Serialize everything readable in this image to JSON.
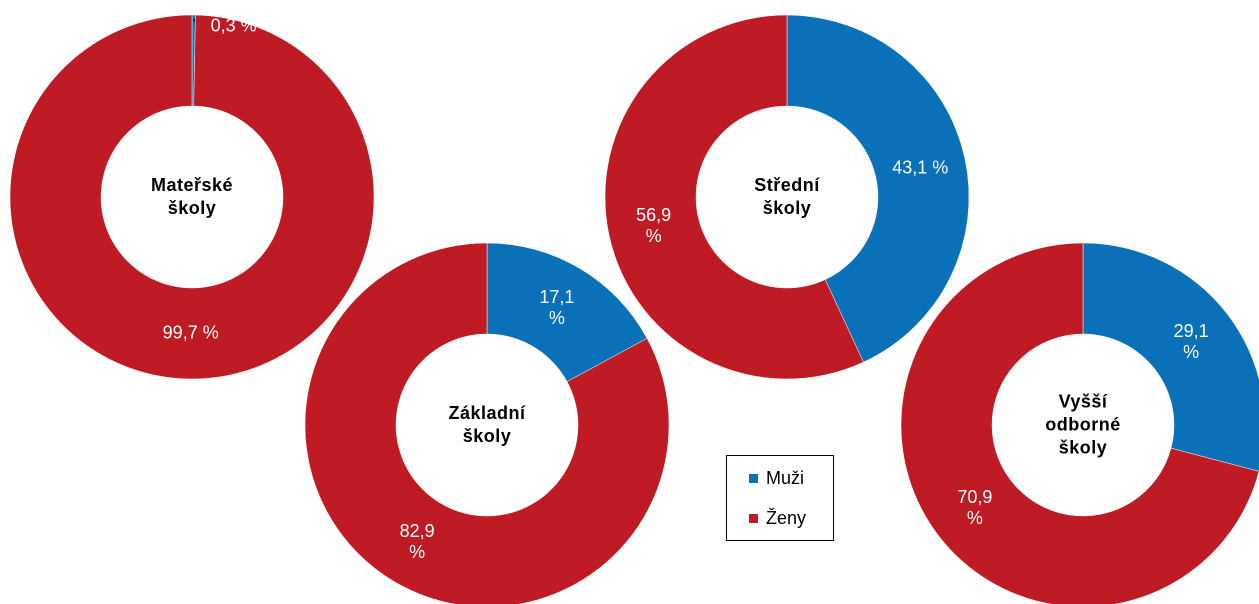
{
  "chart_data": [
    {
      "type": "donut",
      "title": "Mateřské školy",
      "categories": [
        "Muži",
        "Ženy"
      ],
      "colors": [
        "#0a70b8",
        "#be1b24"
      ],
      "values": [
        0.3,
        99.7
      ],
      "value_labels": [
        "0,3 %",
        "99,7 %"
      ]
    },
    {
      "type": "donut",
      "title": "Základní školy",
      "categories": [
        "Muži",
        "Ženy"
      ],
      "colors": [
        "#0a70b8",
        "#be1b24"
      ],
      "values": [
        17.1,
        82.9
      ],
      "value_labels": [
        "17,1 %",
        "82,9 %"
      ]
    },
    {
      "type": "donut",
      "title": "Střední školy",
      "categories": [
        "Muži",
        "Ženy"
      ],
      "colors": [
        "#0a70b8",
        "#be1b24"
      ],
      "values": [
        43.1,
        56.9
      ],
      "value_labels": [
        "43,1 %",
        "56,9 %"
      ]
    },
    {
      "type": "donut",
      "title": "Vyšší odborné školy",
      "categories": [
        "Muži",
        "Ženy"
      ],
      "colors": [
        "#0a70b8",
        "#be1b24"
      ],
      "values": [
        29.1,
        70.9
      ],
      "value_labels": [
        "29,1 %",
        "70,9 %"
      ]
    }
  ]
}
